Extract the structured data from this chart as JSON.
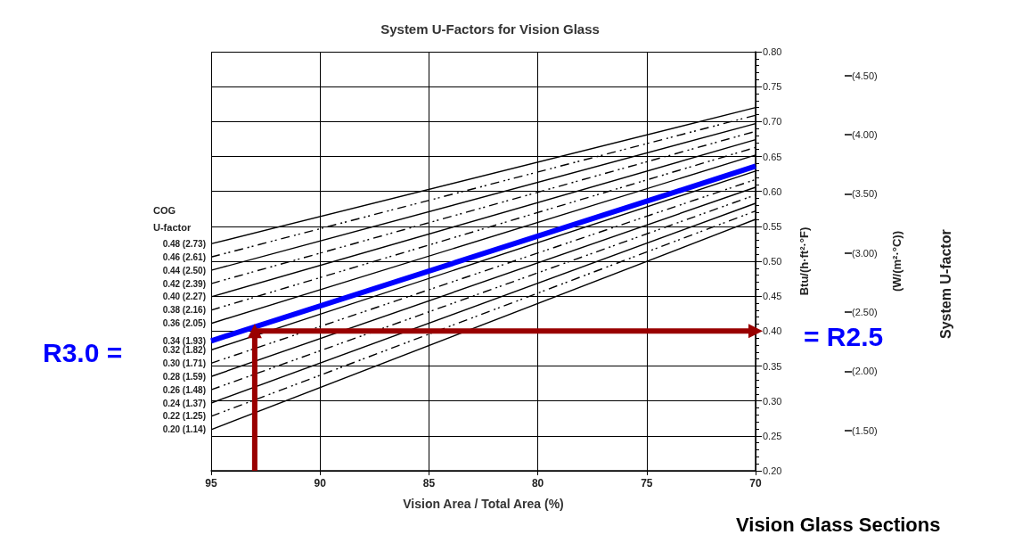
{
  "chart_data": {
    "type": "line",
    "title": "System U-Factors for Vision Glass",
    "xlabel": "Vision Area / Total Area (%)",
    "ylabel": "Btu/(h·ft²·°F)",
    "y2label": "(W/(m²·°C))",
    "legend_title": "COG U-factor",
    "xlim": [
      95,
      70
    ],
    "xticks": [
      95,
      90,
      85,
      80,
      75,
      70
    ],
    "ylim": [
      0.2,
      0.8
    ],
    "yticks": [
      {
        "value": 0.2,
        "label": "0.20"
      },
      {
        "value": 0.25,
        "label": "0.25"
      },
      {
        "value": 0.3,
        "label": "0.30"
      },
      {
        "value": 0.35,
        "label": "0.35"
      },
      {
        "value": 0.4,
        "label": "0.40"
      },
      {
        "value": 0.45,
        "label": "0.45"
      },
      {
        "value": 0.5,
        "label": "0.50"
      },
      {
        "value": 0.55,
        "label": "0.55"
      },
      {
        "value": 0.6,
        "label": "0.60"
      },
      {
        "value": 0.65,
        "label": "0.65"
      },
      {
        "value": 0.7,
        "label": "0.70"
      },
      {
        "value": 0.75,
        "label": "0.75"
      },
      {
        "value": 0.8,
        "label": "0.80"
      }
    ],
    "y2lim": [
      1.16,
      4.7
    ],
    "y2ticks": [
      {
        "value": 1.5,
        "label": "(1.50)"
      },
      {
        "value": 2.0,
        "label": "(2.00)"
      },
      {
        "value": 2.5,
        "label": "(2.50)"
      },
      {
        "value": 3.0,
        "label": "(3.00)"
      },
      {
        "value": 3.5,
        "label": "(3.50)"
      },
      {
        "value": 4.0,
        "label": "(4.00)"
      },
      {
        "value": 4.5,
        "label": "(4.50)"
      }
    ],
    "grid": true,
    "legend": false,
    "marker": "none",
    "series": [
      {
        "name": "0.48 (2.73)",
        "color": "#000000",
        "line_style": "solid",
        "x": [
          95,
          70
        ],
        "values": [
          0.525,
          0.72
        ]
      },
      {
        "name": "0.46 (2.61)",
        "color": "#000000",
        "line_style": "dashed",
        "x": [
          95,
          70
        ],
        "values": [
          0.506,
          0.709
        ]
      },
      {
        "name": "0.44 (2.50)",
        "color": "#000000",
        "line_style": "solid",
        "x": [
          95,
          70
        ],
        "values": [
          0.487,
          0.697
        ]
      },
      {
        "name": "0.42 (2.39)",
        "color": "#000000",
        "line_style": "dashed",
        "x": [
          95,
          70
        ],
        "values": [
          0.468,
          0.686
        ]
      },
      {
        "name": "0.40 (2.27)",
        "color": "#000000",
        "line_style": "solid",
        "x": [
          95,
          70
        ],
        "values": [
          0.449,
          0.674
        ]
      },
      {
        "name": "0.38 (2.16)",
        "color": "#000000",
        "line_style": "dashed",
        "x": [
          95,
          70
        ],
        "values": [
          0.43,
          0.663
        ]
      },
      {
        "name": "0.36 (2.05)",
        "color": "#000000",
        "line_style": "solid",
        "x": [
          95,
          70
        ],
        "values": [
          0.411,
          0.652
        ]
      },
      {
        "name": "0.34 (1.93)",
        "color": "#0000ff",
        "line_style": "solid",
        "x": [
          95,
          70
        ],
        "values": [
          0.386,
          0.636
        ]
      },
      {
        "name": "0.32 (1.82)",
        "color": "#000000",
        "line_style": "solid",
        "x": [
          95,
          70
        ],
        "values": [
          0.373,
          0.629
        ]
      },
      {
        "name": "0.30 (1.71)",
        "color": "#000000",
        "line_style": "dashed",
        "x": [
          95,
          70
        ],
        "values": [
          0.354,
          0.617
        ]
      },
      {
        "name": "0.28 (1.59)",
        "color": "#000000",
        "line_style": "solid",
        "x": [
          95,
          70
        ],
        "values": [
          0.335,
          0.606
        ]
      },
      {
        "name": "0.26 (1.48)",
        "color": "#000000",
        "line_style": "dashed",
        "x": [
          95,
          70
        ],
        "values": [
          0.316,
          0.595
        ]
      },
      {
        "name": "0.24 (1.37)",
        "color": "#000000",
        "line_style": "solid",
        "x": [
          95,
          70
        ],
        "values": [
          0.297,
          0.583
        ]
      },
      {
        "name": "0.22 (1.25)",
        "color": "#000000",
        "line_style": "dashed",
        "x": [
          95,
          70
        ],
        "values": [
          0.278,
          0.572
        ]
      },
      {
        "name": "0.20 (1.14)",
        "color": "#000000",
        "line_style": "solid",
        "x": [
          95,
          70
        ],
        "values": [
          0.259,
          0.56
        ]
      },
      {
        "color": "#990000",
        "line_style": "solid",
        "marker": "triangle",
        "x": [
          93,
          93,
          70
        ],
        "values": [
          0.2,
          0.4,
          0.4
        ]
      }
    ],
    "annotations": [
      "R3.0 =",
      "= R2.5",
      "Vision Glass Sections",
      "System U-factor"
    ]
  }
}
